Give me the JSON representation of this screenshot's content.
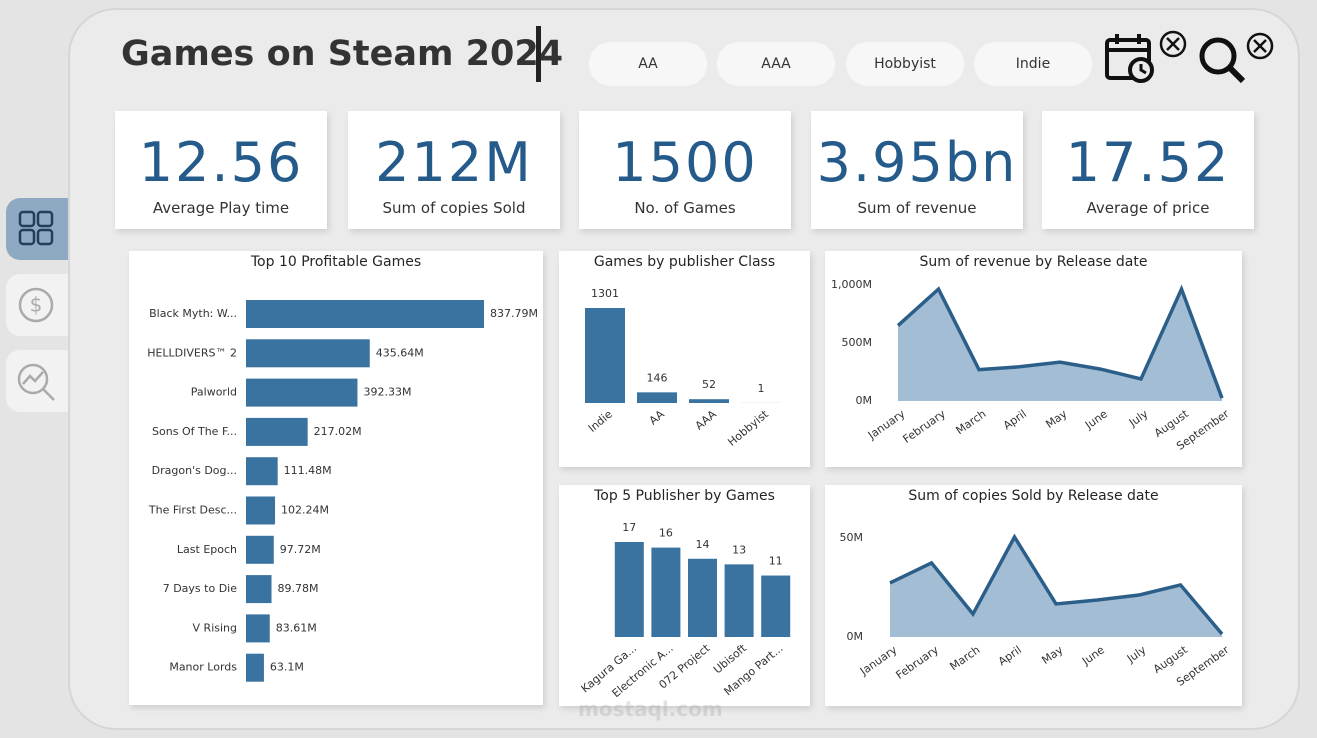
{
  "header": {
    "title": "Games on Steam 2024"
  },
  "filters": [
    "AA",
    "AAA",
    "Hobbyist",
    "Indie"
  ],
  "kpis": [
    {
      "value": "12.56",
      "label": "Average Play time"
    },
    {
      "value": "212M",
      "label": "Sum of copies Sold"
    },
    {
      "value": "1500",
      "label": "No. of Games"
    },
    {
      "value": "3.95bn",
      "label": "Sum of revenue"
    },
    {
      "value": "17.52",
      "label": "Average of price"
    }
  ],
  "chart_data": [
    {
      "type": "barh",
      "title": "Top 10 Profitable Games",
      "color": "#3a72a0",
      "categories": [
        "Black Myth: W...",
        "HELLDIVERS™ 2",
        "Palworld",
        "Sons Of The F...",
        "Dragon's Dog...",
        "The First Desc...",
        "Last Epoch",
        "7 Days to Die",
        "V Rising",
        "Manor Lords"
      ],
      "values": [
        837.79,
        435.64,
        392.33,
        217.02,
        111.48,
        102.24,
        97.72,
        89.78,
        83.61,
        63.1
      ],
      "value_labels": [
        "837.79M",
        "435.64M",
        "392.33M",
        "217.02M",
        "111.48M",
        "102.24M",
        "97.72M",
        "89.78M",
        "83.61M",
        "63.1M"
      ]
    },
    {
      "type": "bar",
      "title": "Games by publisher Class",
      "color": "#3a72a0",
      "categories": [
        "Indie",
        "AA",
        "AAA",
        "Hobbyist"
      ],
      "values": [
        1301,
        146,
        52,
        1
      ]
    },
    {
      "type": "area",
      "title": "Sum of revenue by Release date",
      "color": "#a3bdd4",
      "line_color": "#2b5f8a",
      "categories": [
        "January",
        "February",
        "March",
        "April",
        "May",
        "June",
        "July",
        "August",
        "September"
      ],
      "values": [
        650,
        965,
        270,
        295,
        335,
        275,
        190,
        965,
        25
      ],
      "ylim": [
        0,
        1000
      ],
      "yticks": [
        {
          "value": 0,
          "label": "0M"
        },
        {
          "value": 500,
          "label": "500M"
        },
        {
          "value": 1000,
          "label": "1,000M"
        }
      ]
    },
    {
      "type": "bar",
      "title": "Top 5 Publisher by Games",
      "color": "#3a72a0",
      "categories": [
        "Kagura Ga...",
        "Electronic A...",
        "072 Project",
        "Ubisoft",
        "Mango Part..."
      ],
      "values": [
        17,
        16,
        14,
        13,
        11
      ]
    },
    {
      "type": "area",
      "title": "Sum of copies Sold by Release date",
      "color": "#a3bdd4",
      "line_color": "#2b5f8a",
      "categories": [
        "January",
        "February",
        "March",
        "April",
        "May",
        "June",
        "July",
        "August",
        "September"
      ],
      "values": [
        27.3,
        37.4,
        11.6,
        50.5,
        16.7,
        18.7,
        21.2,
        26.3,
        1.5
      ],
      "ylim": [
        0,
        50
      ],
      "yticks": [
        {
          "value": 0,
          "label": "0M"
        },
        {
          "value": 50,
          "label": "50M"
        }
      ]
    }
  ],
  "watermark": "mostaql.com"
}
